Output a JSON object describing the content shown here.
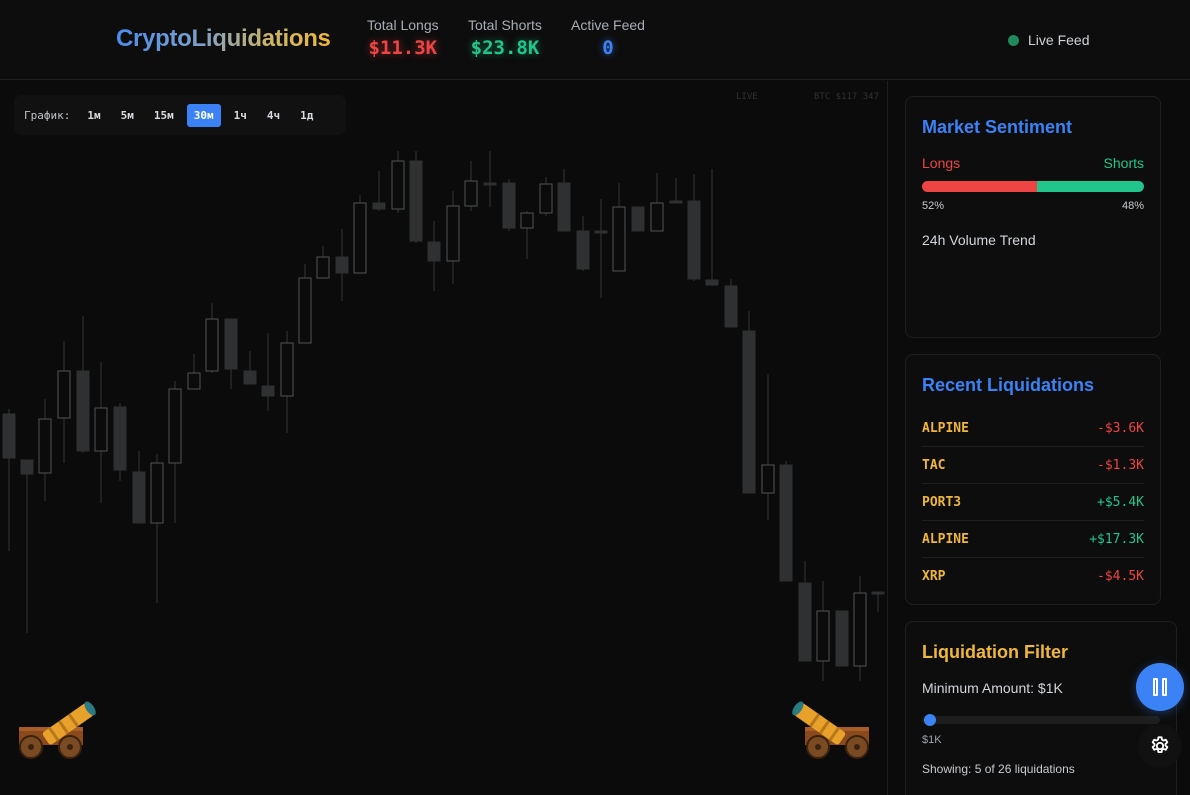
{
  "header": {
    "logo_prefix": "Crypto",
    "logo_suffix": "Liquidations",
    "stats": [
      {
        "label": "Total Longs",
        "value": "$11.3K"
      },
      {
        "label": "Total Shorts",
        "value": "$23.8K"
      },
      {
        "label": "Active Feed",
        "value": "0"
      }
    ],
    "live_feed_label": "Live Feed"
  },
  "chart": {
    "timeframe_label": "График:",
    "timeframes": [
      "1м",
      "5м",
      "15м",
      "30м",
      "1ч",
      "4ч",
      "1д"
    ],
    "active_timeframe": "30м",
    "faint_live": "LIVE",
    "faint_price": "BTC $117 347"
  },
  "sentiment": {
    "title": "Market Sentiment",
    "longs_label": "Longs",
    "shorts_label": "Shorts",
    "longs_pct": "52%",
    "shorts_pct": "48%",
    "longs_fraction": 0.52,
    "volume_trend_label": "24h Volume Trend"
  },
  "recent": {
    "title": "Recent Liquidations",
    "items": [
      {
        "symbol": "ALPINE",
        "amount": "-$3.6K",
        "side": "neg"
      },
      {
        "symbol": "TAC",
        "amount": "-$1.3K",
        "side": "neg"
      },
      {
        "symbol": "PORT3",
        "amount": "+$5.4K",
        "side": "pos"
      },
      {
        "symbol": "ALPINE",
        "amount": "+$17.3K",
        "side": "pos"
      },
      {
        "symbol": "XRP",
        "amount": "-$4.5K",
        "side": "neg"
      }
    ]
  },
  "filter": {
    "title": "Liquidation Filter",
    "minimum_label": "Minimum Amount: $1K",
    "range_min": "$1K",
    "range_max": "$",
    "showing_text": "Showing: 5 of 26 liquidations"
  },
  "colors": {
    "long": "#ef4444",
    "short": "#22c58b",
    "accent": "#3b82f6",
    "symbol": "#f0b73a"
  },
  "icons": {
    "pause": "pause-icon",
    "settings": "gear-icon",
    "cannon": "cannon-icon",
    "status": "status-dot-icon"
  }
}
